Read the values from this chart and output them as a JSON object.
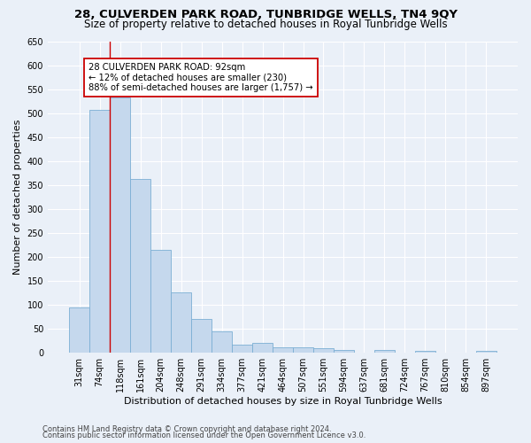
{
  "title": "28, CULVERDEN PARK ROAD, TUNBRIDGE WELLS, TN4 9QY",
  "subtitle": "Size of property relative to detached houses in Royal Tunbridge Wells",
  "xlabel": "Distribution of detached houses by size in Royal Tunbridge Wells",
  "ylabel": "Number of detached properties",
  "footer1": "Contains HM Land Registry data © Crown copyright and database right 2024.",
  "footer2": "Contains public sector information licensed under the Open Government Licence v3.0.",
  "bar_labels": [
    "31sqm",
    "74sqm",
    "118sqm",
    "161sqm",
    "204sqm",
    "248sqm",
    "291sqm",
    "334sqm",
    "377sqm",
    "421sqm",
    "464sqm",
    "507sqm",
    "551sqm",
    "594sqm",
    "637sqm",
    "681sqm",
    "724sqm",
    "767sqm",
    "810sqm",
    "854sqm",
    "897sqm"
  ],
  "bar_values": [
    93,
    507,
    533,
    363,
    215,
    126,
    70,
    43,
    16,
    19,
    11,
    11,
    8,
    5,
    0,
    5,
    0,
    4,
    0,
    0,
    4
  ],
  "bar_color": "#c5d8ed",
  "bar_edge_color": "#7bafd4",
  "vline_x": 1.5,
  "vline_color": "#cc0000",
  "annotation_line1": "28 CULVERDEN PARK ROAD: 92sqm",
  "annotation_line2": "← 12% of detached houses are smaller (230)",
  "annotation_line3": "88% of semi-detached houses are larger (1,757) →",
  "annotation_box_color": "#ffffff",
  "annotation_box_edge": "#cc0000",
  "ylim": [
    0,
    650
  ],
  "yticks": [
    0,
    50,
    100,
    150,
    200,
    250,
    300,
    350,
    400,
    450,
    500,
    550,
    600,
    650
  ],
  "bg_color": "#eaf0f8",
  "axes_bg_color": "#eaf0f8",
  "grid_color": "#ffffff",
  "title_fontsize": 9.5,
  "subtitle_fontsize": 8.5,
  "tick_fontsize": 7,
  "ylabel_fontsize": 8,
  "xlabel_fontsize": 8
}
